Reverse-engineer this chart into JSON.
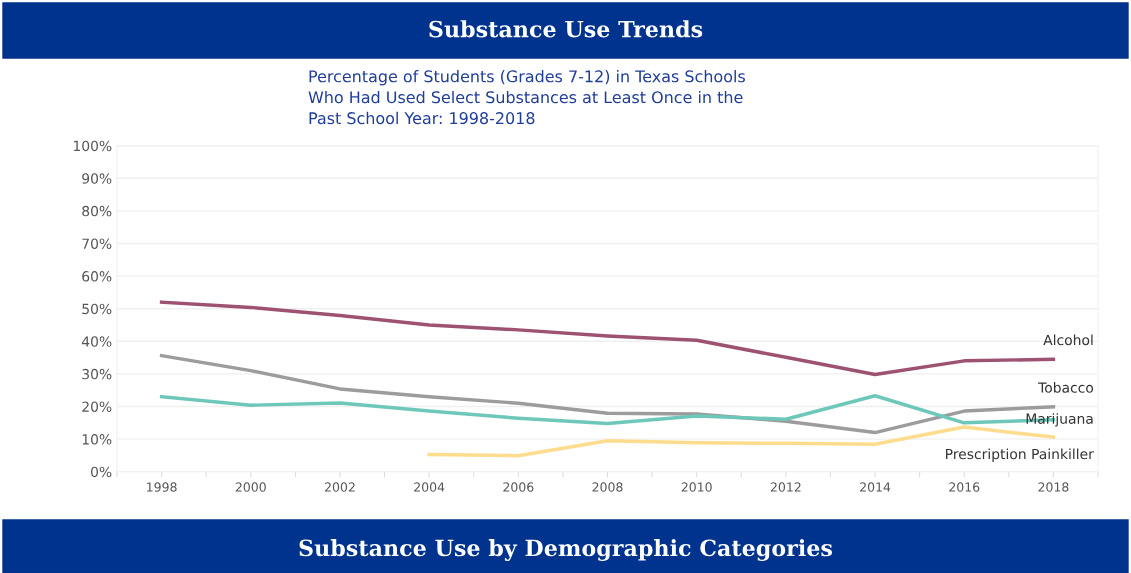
{
  "chart_data": {
    "type": "line",
    "title": "Substance Use Trends",
    "subtitle": "Percentage of Students (Grades 7-12) in Texas Schools\nWho Had Used Select Substances at Least Once in the\nPast School Year: 1998-2018",
    "annotations": [
      "Substance Use by Demographic Categories"
    ],
    "x": [
      1998,
      2000,
      2002,
      2004,
      2006,
      2008,
      2010,
      2012,
      2014,
      2016,
      2018
    ],
    "series": [
      {
        "name": "Alcohol",
        "color": "#9e5272",
        "values": [
          52.0,
          50.4,
          47.9,
          45.0,
          43.5,
          41.6,
          40.3,
          35.1,
          29.8,
          34.0,
          34.5
        ]
      },
      {
        "name": "Tobacco",
        "color": "#9c9c9c",
        "values": [
          35.6,
          31.0,
          25.4,
          23.0,
          21.0,
          17.9,
          17.7,
          15.5,
          12.0,
          18.6,
          19.9
        ]
      },
      {
        "name": "Marijuana",
        "color": "#6ec8ba",
        "values": [
          23.0,
          20.4,
          21.1,
          18.6,
          16.4,
          14.8,
          17.1,
          16.1,
          23.3,
          15.0,
          15.9
        ]
      },
      {
        "name": "Prescription Painkiller",
        "color": "#fddc8e",
        "values": [
          null,
          null,
          null,
          5.3,
          4.9,
          9.5,
          8.9,
          8.7,
          8.4,
          13.7,
          10.6
        ]
      }
    ],
    "xlim": [
      1997,
      2019
    ],
    "xticks": [
      {
        "value": 1997,
        "label": null
      },
      1998,
      {
        "value": 1999,
        "label": null
      },
      2000,
      {
        "value": 2001,
        "label": null
      },
      2002,
      {
        "value": 2003,
        "label": null
      },
      2004,
      {
        "value": 2005,
        "label": null
      },
      2006,
      {
        "value": 2007,
        "label": null
      },
      2008,
      {
        "value": 2009,
        "label": null
      },
      2010,
      {
        "value": 2011,
        "label": null
      },
      2012,
      {
        "value": 2013,
        "label": null
      },
      2014,
      {
        "value": 2015,
        "label": null
      },
      2016,
      {
        "value": 2017,
        "label": null
      },
      2018,
      {
        "value": 2019,
        "label": null
      }
    ],
    "ylim": [
      0,
      100
    ],
    "yticks": [
      {
        "value": 0,
        "label": "0%"
      },
      {
        "value": 10,
        "label": "10%"
      },
      {
        "value": 20,
        "label": "20%"
      },
      {
        "value": 30,
        "label": "30%"
      },
      {
        "value": 40,
        "label": "40%"
      },
      {
        "value": 50,
        "label": "50%"
      },
      {
        "value": 60,
        "label": "60%"
      },
      {
        "value": 70,
        "label": "70%"
      },
      {
        "value": 80,
        "label": "80%"
      },
      {
        "value": 90,
        "label": "90%"
      },
      {
        "value": 100,
        "label": "100%"
      }
    ],
    "grid": "y",
    "legend": false
  }
}
